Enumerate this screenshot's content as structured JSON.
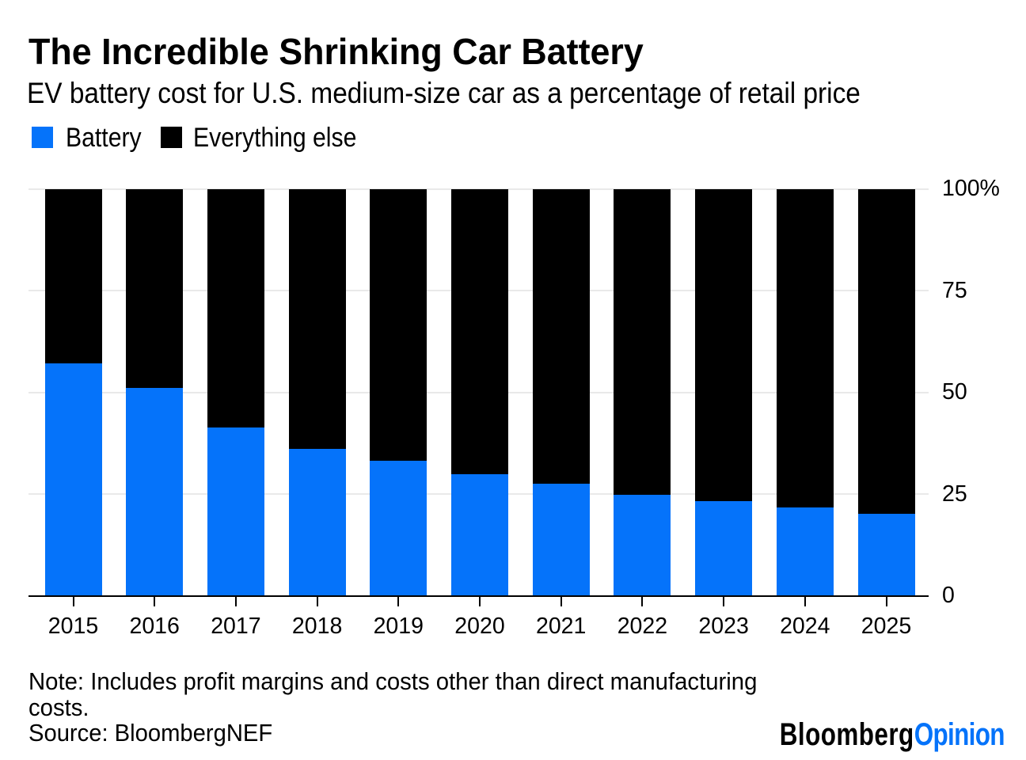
{
  "header": {
    "title": "The Incredible Shrinking Car Battery",
    "subtitle": "EV battery cost for U.S. medium-size car as a percentage of retail price"
  },
  "legend": {
    "items": [
      {
        "label": "Battery",
        "color": "#0573fa"
      },
      {
        "label": "Everything else",
        "color": "#000000"
      }
    ]
  },
  "chart_data": {
    "type": "bar",
    "stacked": true,
    "percent": true,
    "title": "The Incredible Shrinking Car Battery",
    "subtitle": "EV battery cost for U.S. medium-size car as a percentage of retail price",
    "categories": [
      "2015",
      "2016",
      "2017",
      "2018",
      "2019",
      "2020",
      "2021",
      "2022",
      "2023",
      "2024",
      "2025"
    ],
    "series": [
      {
        "name": "Battery",
        "color": "#0573fa",
        "values": [
          57.1,
          51.0,
          41.4,
          36.0,
          33.2,
          29.9,
          27.6,
          24.9,
          23.3,
          21.7,
          20.2
        ]
      },
      {
        "name": "Everything else",
        "color": "#000000",
        "values": [
          42.9,
          49.0,
          58.6,
          64.0,
          66.8,
          70.1,
          72.4,
          75.1,
          76.7,
          78.3,
          79.8
        ]
      }
    ],
    "xlabel": "",
    "ylabel": "",
    "ylim": [
      0,
      100
    ],
    "yticks": [
      {
        "value": 100,
        "label": "100%"
      },
      {
        "value": 75,
        "label": "75"
      },
      {
        "value": 50,
        "label": "50"
      },
      {
        "value": 25,
        "label": "25"
      },
      {
        "value": 0,
        "label": "0"
      }
    ],
    "grid": "horizontal",
    "gridline_color": "#e9e9e9",
    "legend_position": "top-left",
    "y_axis_side": "right"
  },
  "footer": {
    "note": "Note: Includes profit margins and costs other than direct manufacturing costs.",
    "source": "Source: BloombergNEF",
    "brand": {
      "name": "Bloomberg",
      "section": "Opinion",
      "name_color": "#000000",
      "section_color": "#0573fa"
    }
  }
}
